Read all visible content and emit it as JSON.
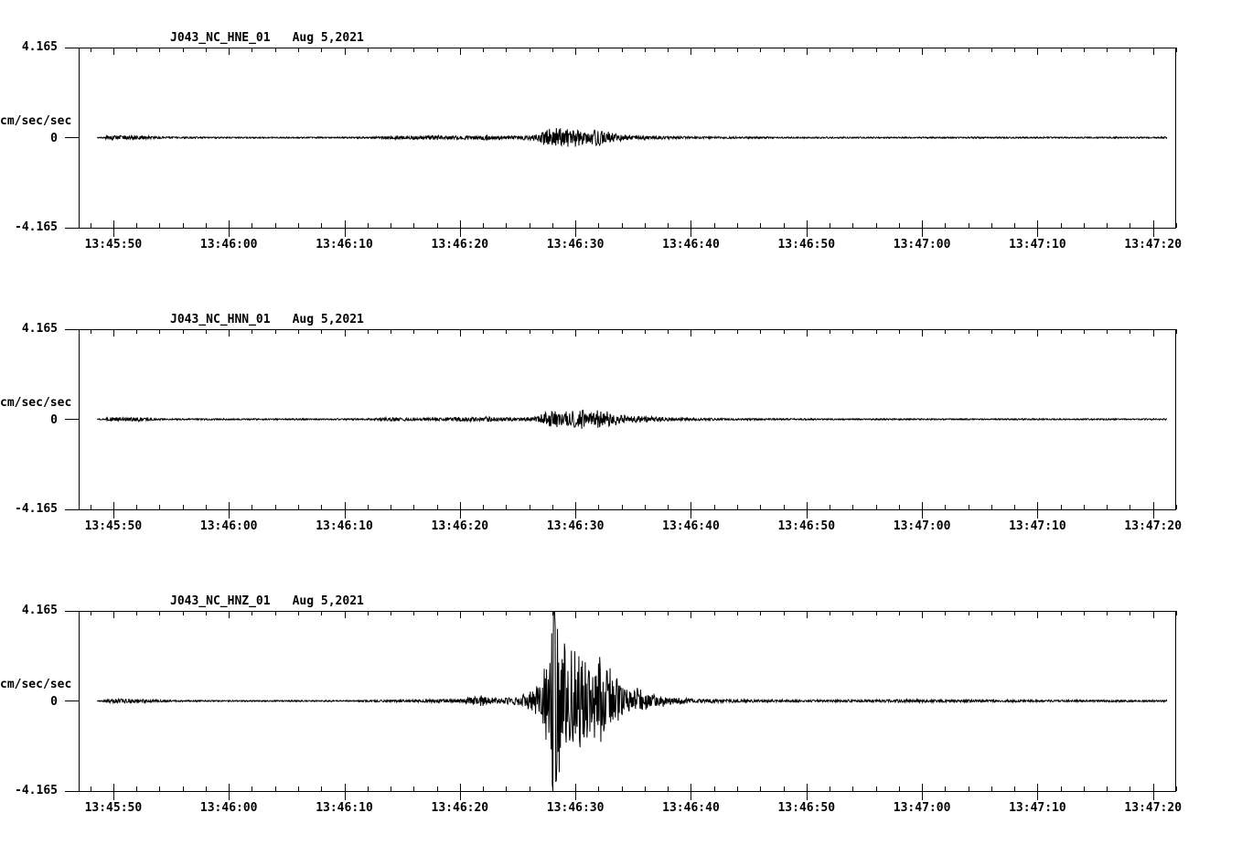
{
  "page": {
    "background_color": "#ffffff",
    "foreground_color": "#000000"
  },
  "chart_data": [
    {
      "type": "line",
      "title": "J043_NC_HNE_01",
      "date": "Aug 5,2021",
      "ylabel": "cm/sec/sec",
      "ytick_labels": [
        "4.165",
        "0",
        "-4.165"
      ],
      "ylim": [
        -4.165,
        4.165
      ],
      "xtick_labels": [
        "13:45:50",
        "13:46:00",
        "13:46:10",
        "13:46:20",
        "13:46:30",
        "13:46:40",
        "13:46:50",
        "13:47:00",
        "13:47:10",
        "13:47:20"
      ],
      "xtick_seconds": [
        3,
        13,
        23,
        33,
        43,
        53,
        63,
        73,
        83,
        93
      ],
      "x_span_seconds": 95,
      "x_minor_interval_seconds": 2,
      "trace_span_seconds": [
        1.6,
        94.2
      ],
      "grid": false,
      "envelope_units": "cm/sec/sec",
      "envelope": [
        [
          1.6,
          0.02
        ],
        [
          2.2,
          0.03
        ],
        [
          2.5,
          0.09
        ],
        [
          4.0,
          0.1
        ],
        [
          5.5,
          0.09
        ],
        [
          6.5,
          0.05
        ],
        [
          8,
          0.035
        ],
        [
          14,
          0.03
        ],
        [
          22,
          0.03
        ],
        [
          25.5,
          0.035
        ],
        [
          26.5,
          0.075
        ],
        [
          29,
          0.09
        ],
        [
          31,
          0.095
        ],
        [
          33,
          0.08
        ],
        [
          34.8,
          0.09
        ],
        [
          35.2,
          0.17
        ],
        [
          35.6,
          0.08
        ],
        [
          37,
          0.08
        ],
        [
          38.5,
          0.09
        ],
        [
          39.8,
          0.13
        ],
        [
          40.3,
          0.36
        ],
        [
          41,
          0.4
        ],
        [
          42,
          0.42
        ],
        [
          43,
          0.36
        ],
        [
          43.8,
          0.26
        ],
        [
          44.6,
          0.3
        ],
        [
          45.6,
          0.28
        ],
        [
          46.4,
          0.16
        ],
        [
          47.5,
          0.12
        ],
        [
          49,
          0.09
        ],
        [
          50.5,
          0.06
        ],
        [
          52,
          0.05
        ],
        [
          54,
          0.045
        ],
        [
          57,
          0.04
        ],
        [
          62,
          0.032
        ],
        [
          70,
          0.03
        ],
        [
          78,
          0.032
        ],
        [
          85,
          0.03
        ],
        [
          90,
          0.035
        ],
        [
          94.2,
          0.03
        ]
      ]
    },
    {
      "type": "line",
      "title": "J043_NC_HNN_01",
      "date": "Aug 5,2021",
      "ylabel": "cm/sec/sec",
      "ytick_labels": [
        "4.165",
        "0",
        "-4.165"
      ],
      "ylim": [
        -4.165,
        4.165
      ],
      "xtick_labels": [
        "13:45:50",
        "13:46:00",
        "13:46:10",
        "13:46:20",
        "13:46:30",
        "13:46:40",
        "13:46:50",
        "13:47:00",
        "13:47:10",
        "13:47:20"
      ],
      "xtick_seconds": [
        3,
        13,
        23,
        33,
        43,
        53,
        63,
        73,
        83,
        93
      ],
      "x_span_seconds": 95,
      "x_minor_interval_seconds": 2,
      "trace_span_seconds": [
        1.6,
        94.2
      ],
      "grid": false,
      "envelope_units": "cm/sec/sec",
      "envelope": [
        [
          1.6,
          0.02
        ],
        [
          2.2,
          0.03
        ],
        [
          2.5,
          0.08
        ],
        [
          4.0,
          0.09
        ],
        [
          5.5,
          0.08
        ],
        [
          6.5,
          0.045
        ],
        [
          8,
          0.035
        ],
        [
          14,
          0.03
        ],
        [
          22,
          0.03
        ],
        [
          25.5,
          0.04
        ],
        [
          27,
          0.07
        ],
        [
          29.5,
          0.06
        ],
        [
          31.5,
          0.07
        ],
        [
          33.2,
          0.11
        ],
        [
          34.2,
          0.09
        ],
        [
          35.5,
          0.11
        ],
        [
          36.8,
          0.07
        ],
        [
          38.2,
          0.07
        ],
        [
          39.6,
          0.1
        ],
        [
          40.3,
          0.3
        ],
        [
          41.2,
          0.34
        ],
        [
          42.3,
          0.32
        ],
        [
          43.4,
          0.4
        ],
        [
          44.4,
          0.34
        ],
        [
          45.0,
          0.48
        ],
        [
          45.6,
          0.32
        ],
        [
          46.5,
          0.22
        ],
        [
          47.6,
          0.14
        ],
        [
          48.8,
          0.13
        ],
        [
          50,
          0.1
        ],
        [
          51.5,
          0.07
        ],
        [
          53.5,
          0.05
        ],
        [
          56,
          0.042
        ],
        [
          60,
          0.035
        ],
        [
          65,
          0.03
        ],
        [
          75,
          0.03
        ],
        [
          85,
          0.03
        ],
        [
          94.2,
          0.03
        ]
      ]
    },
    {
      "type": "line",
      "title": "J043_NC_HNZ_01",
      "date": "Aug 5,2021",
      "ylabel": "cm/sec/sec",
      "ytick_labels": [
        "4.165",
        "0",
        "-4.165"
      ],
      "ylim": [
        -4.165,
        4.165
      ],
      "xtick_labels": [
        "13:45:50",
        "13:46:00",
        "13:46:10",
        "13:46:20",
        "13:46:30",
        "13:46:40",
        "13:46:50",
        "13:47:00",
        "13:47:10",
        "13:47:20"
      ],
      "xtick_seconds": [
        3,
        13,
        23,
        33,
        43,
        53,
        63,
        73,
        83,
        93
      ],
      "x_span_seconds": 95,
      "x_minor_interval_seconds": 2,
      "trace_span_seconds": [
        1.6,
        94.2
      ],
      "grid": false,
      "envelope_units": "cm/sec/sec",
      "envelope": [
        [
          1.6,
          0.02
        ],
        [
          2.2,
          0.04
        ],
        [
          2.6,
          0.09
        ],
        [
          4.2,
          0.1
        ],
        [
          5.8,
          0.08
        ],
        [
          7,
          0.045
        ],
        [
          9,
          0.035
        ],
        [
          15,
          0.03
        ],
        [
          24,
          0.03
        ],
        [
          27,
          0.05
        ],
        [
          29.5,
          0.055
        ],
        [
          31.5,
          0.07
        ],
        [
          33.4,
          0.09
        ],
        [
          34.1,
          0.26
        ],
        [
          34.9,
          0.22
        ],
        [
          35.6,
          0.13
        ],
        [
          36.8,
          0.11
        ],
        [
          37.8,
          0.16
        ],
        [
          38.8,
          0.3
        ],
        [
          39.6,
          0.55
        ],
        [
          40.2,
          1.05
        ],
        [
          40.7,
          2.3
        ],
        [
          41.1,
          4.1
        ],
        [
          41.45,
          3.1
        ],
        [
          41.9,
          2.5
        ],
        [
          42.5,
          2.1
        ],
        [
          43.2,
          1.85
        ],
        [
          43.9,
          1.6
        ],
        [
          44.5,
          1.35
        ],
        [
          44.9,
          1.7
        ],
        [
          45.3,
          1.9
        ],
        [
          45.8,
          1.5
        ],
        [
          46.4,
          1.05
        ],
        [
          47.1,
          0.7
        ],
        [
          47.8,
          0.4
        ],
        [
          48.4,
          0.5
        ],
        [
          49.2,
          0.42
        ],
        [
          50,
          0.28
        ],
        [
          51,
          0.18
        ],
        [
          52.5,
          0.12
        ],
        [
          54,
          0.09
        ],
        [
          56,
          0.07
        ],
        [
          59,
          0.055
        ],
        [
          63,
          0.05
        ],
        [
          68,
          0.05
        ],
        [
          71.5,
          0.07
        ],
        [
          73.5,
          0.06
        ],
        [
          76,
          0.05
        ],
        [
          80,
          0.05
        ],
        [
          85,
          0.045
        ],
        [
          90,
          0.045
        ],
        [
          94.2,
          0.04
        ]
      ]
    }
  ]
}
